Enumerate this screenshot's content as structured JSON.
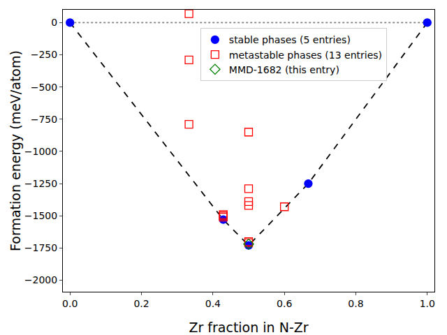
{
  "chart_data": {
    "type": "scatter",
    "x_label": "Zr fraction in N-Zr",
    "y_label": "Formation energy (meV/atom)",
    "xlim": [
      -0.02,
      1.02
    ],
    "ylim": [
      -2090,
      100
    ],
    "xticks": [
      {
        "value": 0,
        "label": "0.0"
      },
      {
        "value": 0.2,
        "label": "0.2"
      },
      {
        "value": 0.4,
        "label": "0.4"
      },
      {
        "value": 0.6,
        "label": "0.6"
      },
      {
        "value": 0.8,
        "label": "0.8"
      },
      {
        "value": 1,
        "label": "1.0"
      }
    ],
    "yticks": [
      {
        "value": -2000,
        "label": "−2000"
      },
      {
        "value": -1750,
        "label": "−1750"
      },
      {
        "value": -1500,
        "label": "−1500"
      },
      {
        "value": -1250,
        "label": "−1250"
      },
      {
        "value": -1000,
        "label": "−1000"
      },
      {
        "value": -750,
        "label": "−750"
      },
      {
        "value": -500,
        "label": "−500"
      },
      {
        "value": -250,
        "label": "−250"
      },
      0
    ],
    "grid": false,
    "legend": "upper center",
    "series": [
      {
        "type": "line",
        "line_style": "dotted",
        "color": "#808080",
        "x": [
          0,
          1
        ],
        "values": [
          0,
          0
        ]
      },
      {
        "type": "line",
        "line_style": "dashed",
        "color": "#000000",
        "x": [
          0,
          0.429,
          0.5,
          0.667,
          1
        ],
        "values": [
          0,
          -1530,
          -1730,
          -1250,
          0
        ]
      },
      {
        "name": "stable phases (5 entries)",
        "type": "scatter",
        "marker": "circle",
        "color": "#0000ff",
        "x": [
          0,
          0.429,
          0.5,
          0.667,
          1
        ],
        "values": [
          0,
          -1530,
          -1730,
          -1250,
          0
        ]
      },
      {
        "name": "metastable phases (13 entries)",
        "type": "scatter",
        "marker": "square-open",
        "color": "#ff0000",
        "x": [
          0.333,
          0.333,
          0.333,
          0.5,
          0.5,
          0.5,
          0.5,
          0.6,
          0.429,
          0.429,
          0.429,
          0.5,
          0.5
        ],
        "values": [
          70,
          -290,
          -790,
          -850,
          -1290,
          -1390,
          -1420,
          -1430,
          -1490,
          -1500,
          -1510,
          -1700,
          -1710
        ]
      },
      {
        "name": "MMD-1682 (this entry)",
        "type": "scatter",
        "marker": "diamond-open",
        "color": "#008000",
        "x": [
          0.5
        ],
        "values": [
          -1720
        ]
      }
    ]
  }
}
